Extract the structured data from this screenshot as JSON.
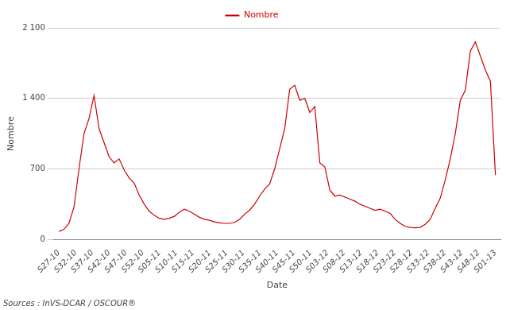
{
  "chart_data": {
    "type": "line",
    "x": [
      0,
      0.2989,
      0.5977,
      0.8966,
      1.1954,
      1.4943,
      1.7931,
      2.092,
      2.3908,
      2.6897,
      2.9885,
      3.2874,
      3.5862,
      3.8851,
      4.1839,
      4.4828,
      4.7816,
      5.0805,
      5.3793,
      5.6782,
      5.977,
      6.2759,
      6.5747,
      6.8736,
      7.1724,
      7.4713,
      7.7701,
      8.069,
      8.3678,
      8.6667,
      8.9655,
      9.2644,
      9.5632,
      9.8621,
      10.1609,
      10.4598,
      10.7586,
      11.0575,
      11.3563,
      11.6552,
      11.954,
      12.2529,
      12.5517,
      12.8506,
      13.1494,
      13.4483,
      13.7471,
      14.046,
      14.3448,
      14.6437,
      14.9425,
      15.2414,
      15.5402,
      15.8391,
      16.1379,
      16.4368,
      16.7356,
      17.0345,
      17.3333,
      17.6322,
      17.931,
      18.2299,
      18.5287,
      18.8276,
      19.1264,
      19.4253,
      19.7241,
      20.023,
      20.3218,
      20.6207,
      20.9195,
      21.2184,
      21.5172,
      21.8161,
      22.1149,
      22.4138,
      22.7126,
      23.0115,
      23.3103,
      23.6092,
      23.908,
      24.2069,
      24.5057,
      24.8046,
      25.1034,
      25.4023,
      25.7011,
      26
    ],
    "series": [
      {
        "name": "Nombre",
        "color": "#cc0000",
        "values": [
          80,
          100,
          160,
          320,
          700,
          1050,
          1200,
          1430,
          1100,
          960,
          820,
          760,
          800,
          690,
          610,
          560,
          440,
          350,
          280,
          240,
          210,
          200,
          210,
          230,
          270,
          300,
          280,
          250,
          220,
          200,
          190,
          175,
          165,
          160,
          160,
          170,
          200,
          250,
          290,
          350,
          430,
          500,
          550,
          700,
          900,
          1100,
          1490,
          1530,
          1380,
          1400,
          1260,
          1320,
          760,
          720,
          490,
          430,
          440,
          420,
          400,
          380,
          350,
          330,
          310,
          290,
          300,
          280,
          260,
          200,
          160,
          130,
          120,
          115,
          120,
          150,
          200,
          310,
          410,
          590,
          800,
          1050,
          1380,
          1480,
          1870,
          1960,
          1820,
          1680,
          1570,
          640
        ]
      }
    ],
    "xlabel": "Date",
    "ylabel": "Nombre",
    "xlim": [
      -0.3,
      26.3
    ],
    "xticks": [
      {
        "value": 0,
        "label": "S27-10"
      },
      {
        "value": 1,
        "label": "S32-10"
      },
      {
        "value": 2,
        "label": "S37-10"
      },
      {
        "value": 3,
        "label": "S42-10"
      },
      {
        "value": 4,
        "label": "S47-10"
      },
      {
        "value": 5,
        "label": "S52-10"
      },
      {
        "value": 6,
        "label": "S05-11"
      },
      {
        "value": 7,
        "label": "S10-11"
      },
      {
        "value": 8,
        "label": "S15-11"
      },
      {
        "value": 9,
        "label": "S20-11"
      },
      {
        "value": 10,
        "label": "S25-11"
      },
      {
        "value": 11,
        "label": "S30-11"
      },
      {
        "value": 12,
        "label": "S35-11"
      },
      {
        "value": 13,
        "label": "S40-11"
      },
      {
        "value": 14,
        "label": "S45-11"
      },
      {
        "value": 15,
        "label": "S50-11"
      },
      {
        "value": 16,
        "label": "S03-12"
      },
      {
        "value": 17,
        "label": "S08-12"
      },
      {
        "value": 18,
        "label": "S13-12"
      },
      {
        "value": 19,
        "label": "S18-12"
      },
      {
        "value": 20,
        "label": "S23-12"
      },
      {
        "value": 21,
        "label": "S28-12"
      },
      {
        "value": 22,
        "label": "S33-12"
      },
      {
        "value": 23,
        "label": "S38-12"
      },
      {
        "value": 24,
        "label": "S43-12"
      },
      {
        "value": 25,
        "label": "S48-12"
      },
      {
        "value": 26,
        "label": "S01-13"
      }
    ],
    "ylim": [
      0,
      2100
    ],
    "yticks": [
      0,
      700,
      {
        "value": 1400,
        "label": "1 400"
      },
      {
        "value": 2100,
        "label": "2 100"
      }
    ],
    "grid": "y",
    "legend": "top",
    "annotations": [
      "Sources : InVS-DCAR / OSCOUR®"
    ]
  }
}
